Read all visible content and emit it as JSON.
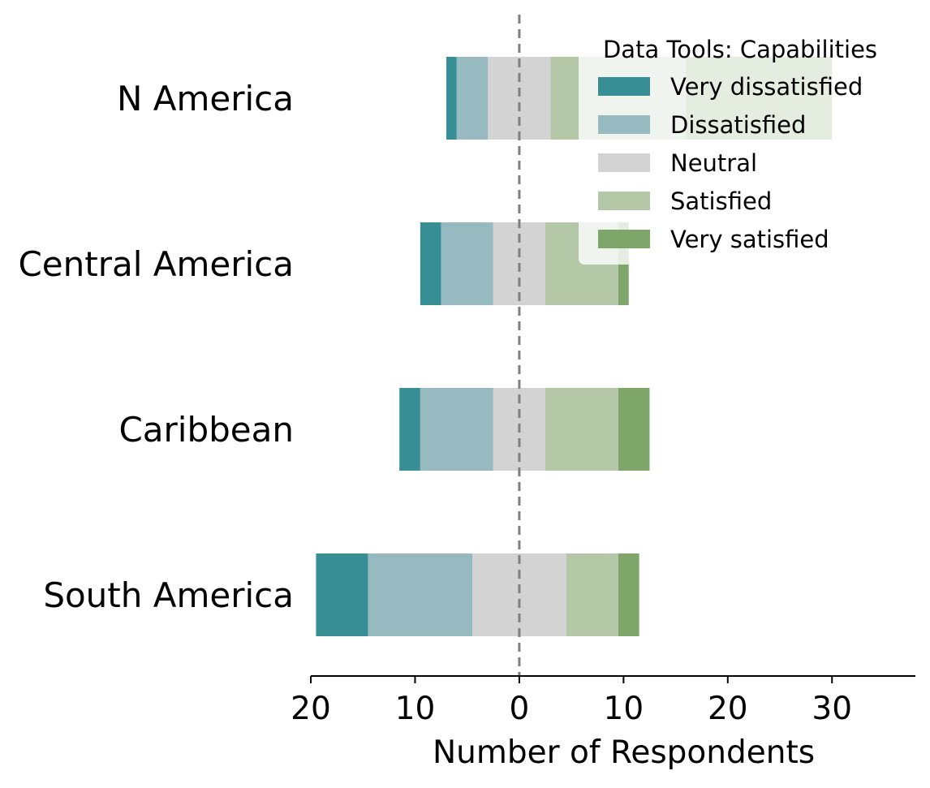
{
  "chart_data": {
    "type": "bar",
    "orientation": "horizontal",
    "stacked": "diverging",
    "categories": [
      "N America",
      "Central America",
      "Caribbean",
      "South America"
    ],
    "series": [
      {
        "name": "Very dissatisfied",
        "values": [
          1,
          2,
          2,
          5
        ],
        "color": "#378e94"
      },
      {
        "name": "Dissatisfied",
        "values": [
          3,
          5,
          7,
          10
        ],
        "color": "#97bac0"
      },
      {
        "name": "Neutral",
        "values": [
          6,
          5,
          5,
          9
        ],
        "color": "#d3d3d3"
      },
      {
        "name": "Satisfied",
        "values": [
          13,
          7,
          7,
          5
        ],
        "color": "#b4c8a8"
      },
      {
        "name": "Very satisfied",
        "values": [
          14,
          1,
          3,
          2
        ],
        "color": "#7ea66a"
      }
    ],
    "xlabel": "Number of Respondents",
    "xlim": [
      -20,
      38
    ],
    "xticks": [
      -20,
      -10,
      0,
      10,
      20,
      30
    ],
    "xtick_labels": [
      "20",
      "10",
      "0",
      "10",
      "20",
      "30"
    ],
    "center_line": "dashed vertical line at 0",
    "legend": {
      "title": "Data Tools: Capabilities",
      "placement": "top-right"
    },
    "grid": false
  }
}
